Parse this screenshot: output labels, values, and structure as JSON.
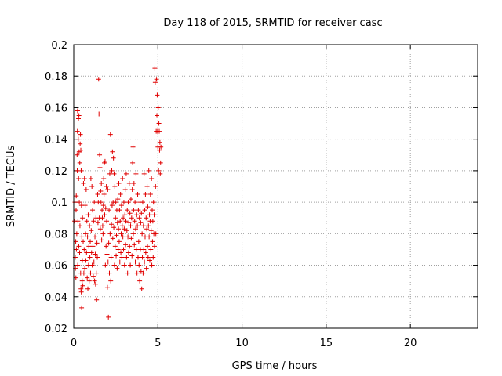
{
  "chart_data": {
    "type": "scatter",
    "title": "Day 118 of 2015, SRMTID for receiver casc",
    "xlabel": "GPS time / hours",
    "ylabel": "SRMTID / TECUs",
    "xlim": [
      0,
      24
    ],
    "ylim": [
      0.02,
      0.2
    ],
    "xticks": [
      0,
      5,
      10,
      15,
      20
    ],
    "xtick_labels": [
      "0",
      "5",
      "10",
      "15",
      "20"
    ],
    "yticks": [
      0.02,
      0.04,
      0.06,
      0.08,
      0.1,
      0.12,
      0.14,
      0.16,
      0.18,
      0.2
    ],
    "ytick_labels": [
      "0.02",
      "0.04",
      "0.06",
      "0.08",
      "0.1",
      "0.12",
      "0.14",
      "0.16",
      "0.18",
      "0.2"
    ],
    "grid": true,
    "marker": "+",
    "color": "#e00000",
    "series": [
      {
        "points": [
          [
            0.05,
            0.088
          ],
          [
            0.07,
            0.1
          ],
          [
            0.09,
            0.065
          ],
          [
            0.1,
            0.058
          ],
          [
            0.12,
            0.075
          ],
          [
            0.13,
            0.052
          ],
          [
            0.14,
            0.095
          ],
          [
            0.15,
            0.104
          ],
          [
            0.16,
            0.07
          ],
          [
            0.18,
            0.08
          ],
          [
            0.2,
            0.13
          ],
          [
            0.21,
            0.12
          ],
          [
            0.22,
            0.145
          ],
          [
            0.23,
            0.158
          ],
          [
            0.24,
            0.06
          ],
          [
            0.25,
            0.088
          ],
          [
            0.27,
            0.14
          ],
          [
            0.28,
            0.153
          ],
          [
            0.29,
            0.115
          ],
          [
            0.3,
            0.072
          ],
          [
            0.31,
            0.155
          ],
          [
            0.32,
            0.132
          ],
          [
            0.33,
            0.1
          ],
          [
            0.35,
            0.068
          ],
          [
            0.36,
            0.125
          ],
          [
            0.37,
            0.085
          ],
          [
            0.38,
            0.137
          ],
          [
            0.4,
            0.143
          ],
          [
            0.41,
            0.055
          ],
          [
            0.42,
            0.133
          ],
          [
            0.43,
            0.045
          ],
          [
            0.44,
            0.12
          ],
          [
            0.45,
            0.043
          ],
          [
            0.46,
            0.098
          ],
          [
            0.47,
            0.033
          ],
          [
            0.48,
            0.078
          ],
          [
            0.5,
            0.05
          ],
          [
            0.51,
            0.063
          ],
          [
            0.52,
            0.09
          ],
          [
            0.54,
            0.047
          ],
          [
            0.56,
            0.075
          ],
          [
            0.58,
            0.112
          ],
          [
            0.6,
            0.055
          ],
          [
            0.62,
            0.07
          ],
          [
            0.64,
            0.115
          ],
          [
            0.66,
            0.058
          ],
          [
            0.68,
            0.098
          ],
          [
            0.7,
            0.08
          ],
          [
            0.72,
            0.063
          ],
          [
            0.74,
            0.108
          ],
          [
            0.76,
            0.068
          ],
          [
            0.78,
            0.088
          ],
          [
            0.8,
            0.052
          ],
          [
            0.82,
            0.078
          ],
          [
            0.84,
            0.045
          ],
          [
            0.86,
            0.092
          ],
          [
            0.88,
            0.06
          ],
          [
            0.9,
            0.072
          ],
          [
            0.92,
            0.05
          ],
          [
            0.94,
            0.085
          ],
          [
            0.96,
            0.065
          ],
          [
            0.98,
            0.075
          ],
          [
            1.0,
            0.055
          ],
          [
            1.02,
            0.115
          ],
          [
            1.04,
            0.082
          ],
          [
            1.06,
            0.068
          ],
          [
            1.08,
            0.11
          ],
          [
            1.1,
            0.06
          ],
          [
            1.12,
            0.095
          ],
          [
            1.14,
            0.072
          ],
          [
            1.16,
            0.053
          ],
          [
            1.18,
            0.088
          ],
          [
            1.2,
            0.062
          ],
          [
            1.22,
            0.1
          ],
          [
            1.24,
            0.05
          ],
          [
            1.26,
            0.078
          ],
          [
            1.28,
            0.067
          ],
          [
            1.3,
            0.048
          ],
          [
            1.32,
            0.09
          ],
          [
            1.34,
            0.055
          ],
          [
            1.36,
            0.038
          ],
          [
            1.38,
            0.074
          ],
          [
            1.4,
            0.065
          ],
          [
            1.42,
            0.105
          ],
          [
            1.44,
            0.087
          ],
          [
            1.46,
            0.1
          ],
          [
            1.48,
            0.178
          ],
          [
            1.5,
            0.156
          ],
          [
            1.52,
            0.09
          ],
          [
            1.54,
            0.13
          ],
          [
            1.56,
            0.122
          ],
          [
            1.58,
            0.083
          ],
          [
            1.6,
            0.107
          ],
          [
            1.62,
            0.1
          ],
          [
            1.64,
            0.112
          ],
          [
            1.66,
            0.076
          ],
          [
            1.68,
            0.095
          ],
          [
            1.7,
            0.09
          ],
          [
            1.72,
            0.085
          ],
          [
            1.74,
            0.08
          ],
          [
            1.76,
            0.098
          ],
          [
            1.78,
            0.115
          ],
          [
            1.8,
            0.105
          ],
          [
            1.82,
            0.125
          ],
          [
            1.84,
            0.092
          ],
          [
            1.86,
            0.126
          ],
          [
            1.88,
            0.06
          ],
          [
            1.9,
            0.096
          ],
          [
            1.92,
            0.072
          ],
          [
            1.94,
            0.11
          ],
          [
            1.96,
            0.088
          ],
          [
            1.98,
            0.067
          ],
          [
            2.0,
            0.046
          ],
          [
            2.02,
            0.108
          ],
          [
            2.04,
            0.062
          ],
          [
            2.06,
            0.027
          ],
          [
            2.08,
            0.074
          ],
          [
            2.1,
            0.095
          ],
          [
            2.12,
            0.055
          ],
          [
            2.14,
            0.118
          ],
          [
            2.16,
            0.08
          ],
          [
            2.18,
            0.143
          ],
          [
            2.2,
            0.05
          ],
          [
            2.22,
            0.065
          ],
          [
            2.24,
            0.086
          ],
          [
            2.26,
            0.12
          ],
          [
            2.28,
            0.098
          ],
          [
            2.3,
            0.132
          ],
          [
            2.32,
            0.077
          ],
          [
            2.34,
            0.1
          ],
          [
            2.36,
            0.128
          ],
          [
            2.38,
            0.084
          ],
          [
            2.4,
            0.118
          ],
          [
            2.42,
            0.06
          ],
          [
            2.44,
            0.11
          ],
          [
            2.46,
            0.072
          ],
          [
            2.48,
            0.09
          ],
          [
            2.5,
            0.1
          ],
          [
            2.52,
            0.066
          ],
          [
            2.54,
            0.079
          ],
          [
            2.56,
            0.095
          ],
          [
            2.58,
            0.058
          ],
          [
            2.6,
            0.087
          ],
          [
            2.62,
            0.102
          ],
          [
            2.64,
            0.07
          ],
          [
            2.66,
            0.083
          ],
          [
            2.68,
            0.112
          ],
          [
            2.7,
            0.075
          ],
          [
            2.72,
            0.095
          ],
          [
            2.74,
            0.062
          ],
          [
            2.76,
            0.088
          ],
          [
            2.78,
            0.105
          ],
          [
            2.8,
            0.068
          ],
          [
            2.82,
            0.08
          ],
          [
            2.84,
            0.098
          ],
          [
            2.86,
            0.065
          ],
          [
            2.88,
            0.085
          ],
          [
            2.9,
            0.115
          ],
          [
            2.92,
            0.078
          ],
          [
            2.94,
            0.09
          ],
          [
            2.96,
            0.07
          ],
          [
            2.98,
            0.1
          ],
          [
            3.0,
            0.083
          ],
          [
            3.02,
            0.06
          ],
          [
            3.04,
            0.092
          ],
          [
            3.06,
            0.108
          ],
          [
            3.08,
            0.073
          ],
          [
            3.1,
            0.088
          ],
          [
            3.12,
            0.118
          ],
          [
            3.14,
            0.065
          ],
          [
            3.16,
            0.082
          ],
          [
            3.18,
            0.095
          ],
          [
            3.2,
            0.055
          ],
          [
            3.22,
            0.078
          ],
          [
            3.24,
            0.1
          ],
          [
            3.26,
            0.068
          ],
          [
            3.28,
            0.087
          ],
          [
            3.3,
            0.112
          ],
          [
            3.32,
            0.072
          ],
          [
            3.34,
            0.093
          ],
          [
            3.36,
            0.06
          ],
          [
            3.38,
            0.085
          ],
          [
            3.4,
            0.102
          ],
          [
            3.42,
            0.077
          ],
          [
            3.44,
            0.09
          ],
          [
            3.46,
            0.066
          ],
          [
            3.48,
            0.108
          ],
          [
            3.5,
            0.125
          ],
          [
            3.52,
            0.135
          ],
          [
            3.54,
            0.08
          ],
          [
            3.56,
            0.095
          ],
          [
            3.58,
            0.112
          ],
          [
            3.6,
            0.073
          ],
          [
            3.62,
            0.088
          ],
          [
            3.64,
            0.1
          ],
          [
            3.66,
            0.062
          ],
          [
            3.68,
            0.083
          ],
          [
            3.7,
            0.118
          ],
          [
            3.72,
            0.07
          ],
          [
            3.74,
            0.092
          ],
          [
            3.76,
            0.055
          ],
          [
            3.78,
            0.085
          ],
          [
            3.8,
            0.105
          ],
          [
            3.82,
            0.065
          ],
          [
            3.84,
            0.095
          ],
          [
            3.86,
            0.075
          ],
          [
            3.88,
            0.06
          ],
          [
            3.9,
            0.09
          ],
          [
            3.92,
            0.05
          ],
          [
            3.94,
            0.1
          ],
          [
            3.96,
            0.07
          ],
          [
            3.98,
            0.087
          ],
          [
            4.0,
            0.056
          ],
          [
            4.02,
            0.093
          ],
          [
            4.04,
            0.045
          ],
          [
            4.06,
            0.08
          ],
          [
            4.08,
            0.065
          ],
          [
            4.1,
            0.1
          ],
          [
            4.12,
            0.055
          ],
          [
            4.14,
            0.085
          ],
          [
            4.16,
            0.07
          ],
          [
            4.18,
            0.118
          ],
          [
            4.2,
            0.062
          ],
          [
            4.22,
            0.095
          ],
          [
            4.24,
            0.078
          ],
          [
            4.26,
            0.105
          ],
          [
            4.28,
            0.068
          ],
          [
            4.3,
            0.09
          ],
          [
            4.32,
            0.058
          ],
          [
            4.34,
            0.083
          ],
          [
            4.36,
            0.11
          ],
          [
            4.38,
            0.072
          ],
          [
            4.4,
            0.097
          ],
          [
            4.42,
            0.065
          ],
          [
            4.44,
            0.085
          ],
          [
            4.46,
            0.12
          ],
          [
            4.48,
            0.078
          ],
          [
            4.5,
            0.092
          ],
          [
            4.52,
            0.063
          ],
          [
            4.54,
            0.088
          ],
          [
            4.56,
            0.105
          ],
          [
            4.58,
            0.07
          ],
          [
            4.6,
            0.082
          ],
          [
            4.62,
            0.115
          ],
          [
            4.64,
            0.06
          ],
          [
            4.66,
            0.095
          ],
          [
            4.68,
            0.075
          ],
          [
            4.7,
            0.088
          ],
          [
            4.72,
            0.065
          ],
          [
            4.74,
            0.1
          ],
          [
            4.76,
            0.08
          ],
          [
            4.78,
            0.092
          ],
          [
            4.8,
            0.072
          ],
          [
            4.82,
            0.185
          ],
          [
            4.84,
            0.176
          ],
          [
            4.86,
            0.11
          ],
          [
            4.88,
            0.08
          ],
          [
            4.9,
            0.145
          ],
          [
            4.92,
            0.178
          ],
          [
            4.94,
            0.155
          ],
          [
            4.96,
            0.168
          ],
          [
            4.98,
            0.145
          ],
          [
            5.0,
            0.135
          ],
          [
            5.02,
            0.16
          ],
          [
            5.04,
            0.12
          ],
          [
            5.06,
            0.15
          ],
          [
            5.08,
            0.145
          ],
          [
            5.1,
            0.133
          ],
          [
            5.12,
            0.138
          ],
          [
            5.14,
            0.118
          ],
          [
            5.16,
            0.125
          ],
          [
            5.18,
            0.135
          ]
        ]
      }
    ]
  }
}
